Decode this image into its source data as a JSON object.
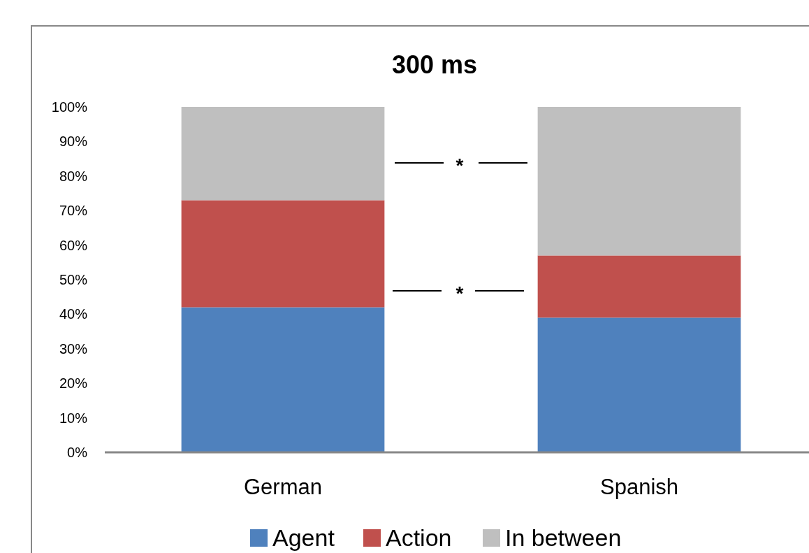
{
  "chart_data": {
    "type": "bar",
    "title": "300 ms",
    "categories": [
      "German",
      "Spanish"
    ],
    "stacked": true,
    "series": [
      {
        "name": "Agent",
        "color": "#4f81bd",
        "values": [
          42,
          39
        ]
      },
      {
        "name": "Action",
        "color": "#c0504d",
        "values": [
          31,
          18
        ]
      },
      {
        "name": "In between",
        "color": "#bfbfbf",
        "values": [
          27,
          43
        ]
      }
    ],
    "ylim": [
      0,
      100
    ],
    "yticks": [
      {
        "value": 0,
        "label": "0%"
      },
      {
        "value": 10,
        "label": "10%"
      },
      {
        "value": 20,
        "label": "20%"
      },
      {
        "value": 30,
        "label": "30%"
      },
      {
        "value": 40,
        "label": "40%"
      },
      {
        "value": 50,
        "label": "50%"
      },
      {
        "value": 60,
        "label": "60%"
      },
      {
        "value": 70,
        "label": "70%"
      },
      {
        "value": 80,
        "label": "80%"
      },
      {
        "value": 90,
        "label": "90%"
      },
      {
        "value": 100,
        "label": "100%"
      }
    ],
    "annotations": [
      "*",
      "*"
    ],
    "grid": false,
    "legend": "bottom"
  }
}
